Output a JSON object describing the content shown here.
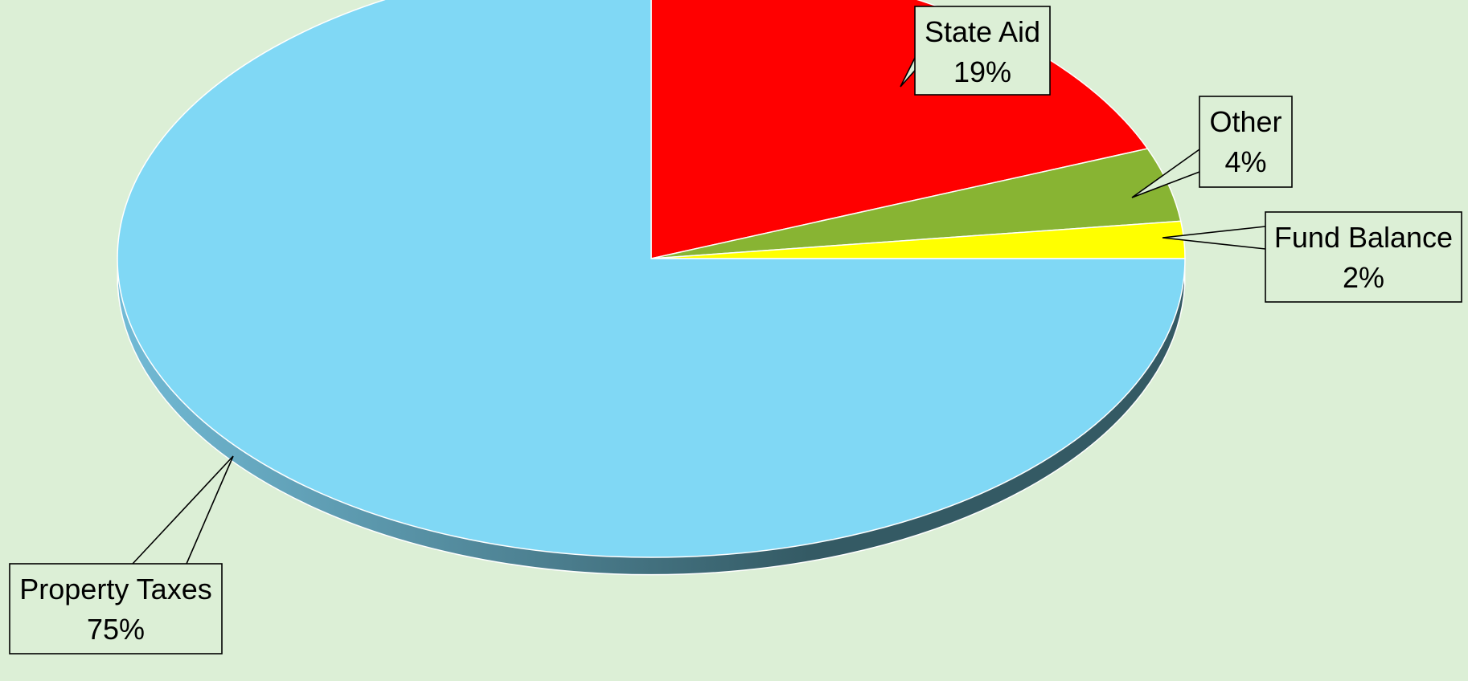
{
  "chart_data": {
    "type": "pie",
    "title": "",
    "style": "3d",
    "slices": [
      {
        "label": "State Aid",
        "value": 19,
        "percent_label": "19%",
        "color": "#ff0000"
      },
      {
        "label": "Other",
        "value": 4,
        "percent_label": "4%",
        "color": "#88b433"
      },
      {
        "label": "Fund Balance",
        "value": 2,
        "percent_label": "2%",
        "color": "#ffff00"
      },
      {
        "label": "Property Taxes",
        "value": 75,
        "percent_label": "75%",
        "color": "#80d8f5"
      }
    ],
    "start_angle": "12 o'clock, clockwise",
    "legend": "none",
    "data_labels": "callouts with leader lines"
  },
  "colors": {
    "background": "#dcefd6",
    "side_light": "#72bbd6",
    "side_dark": "#345a64"
  }
}
